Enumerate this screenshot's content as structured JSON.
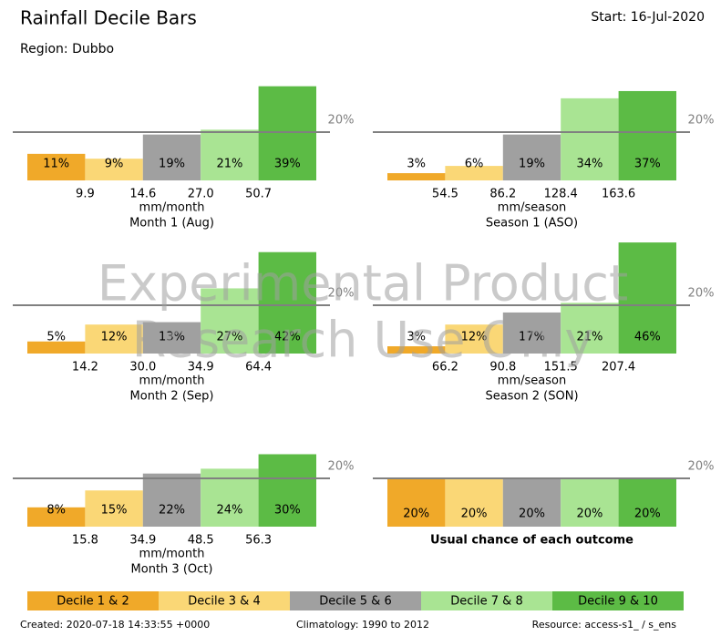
{
  "header": {
    "title": "Rainfall Decile Bars",
    "region": "Region: Dubbo",
    "start": "Start: 16-Jul-2020"
  },
  "watermark": [
    "Experimental Product",
    "Research Use Only"
  ],
  "chart_data": [
    {
      "type": "bar",
      "values": [
        11,
        9,
        19,
        21,
        39
      ],
      "value_labels": [
        "11%",
        "9%",
        "19%",
        "21%",
        "39%"
      ],
      "thresholds": [
        "9.9",
        "14.6",
        "27.0",
        "50.7"
      ],
      "unit": "mm/month",
      "title": "Month 1 (Aug)",
      "ylim": [
        0,
        50
      ],
      "ref_line": 20,
      "ref_label": "20%",
      "colors": [
        "#f0a929",
        "#fad776",
        "#a0a0a0",
        "#a9e493",
        "#5cbb45"
      ]
    },
    {
      "type": "bar",
      "values": [
        3,
        6,
        19,
        34,
        37
      ],
      "value_labels": [
        "3%",
        "6%",
        "19%",
        "34%",
        "37%"
      ],
      "thresholds": [
        "54.5",
        "86.2",
        "128.4",
        "163.6"
      ],
      "unit": "mm/season",
      "title": "Season 1 (ASO)",
      "ylim": [
        0,
        50
      ],
      "ref_line": 20,
      "ref_label": "20%",
      "colors": [
        "#f0a929",
        "#fad776",
        "#a0a0a0",
        "#a9e493",
        "#5cbb45"
      ]
    },
    {
      "type": "bar",
      "values": [
        5,
        12,
        13,
        27,
        42
      ],
      "value_labels": [
        "5%",
        "12%",
        "13%",
        "27%",
        "42%"
      ],
      "thresholds": [
        "14.2",
        "30.0",
        "34.9",
        "64.4"
      ],
      "unit": "mm/month",
      "title": "Month 2 (Sep)",
      "ylim": [
        0,
        50
      ],
      "ref_line": 20,
      "ref_label": "20%",
      "colors": [
        "#f0a929",
        "#fad776",
        "#a0a0a0",
        "#a9e493",
        "#5cbb45"
      ]
    },
    {
      "type": "bar",
      "values": [
        3,
        12,
        17,
        21,
        46
      ],
      "value_labels": [
        "3%",
        "12%",
        "17%",
        "21%",
        "46%"
      ],
      "thresholds": [
        "66.2",
        "90.8",
        "151.5",
        "207.4"
      ],
      "unit": "mm/season",
      "title": "Season 2 (SON)",
      "ylim": [
        0,
        50
      ],
      "ref_line": 20,
      "ref_label": "20%",
      "colors": [
        "#f0a929",
        "#fad776",
        "#a0a0a0",
        "#a9e493",
        "#5cbb45"
      ]
    },
    {
      "type": "bar",
      "values": [
        8,
        15,
        22,
        24,
        30
      ],
      "value_labels": [
        "8%",
        "15%",
        "22%",
        "24%",
        "30%"
      ],
      "thresholds": [
        "15.8",
        "34.9",
        "48.5",
        "56.3"
      ],
      "unit": "mm/month",
      "title": "Month 3 (Oct)",
      "ylim": [
        0,
        50
      ],
      "ref_line": 20,
      "ref_label": "20%",
      "colors": [
        "#f0a929",
        "#fad776",
        "#a0a0a0",
        "#a9e493",
        "#5cbb45"
      ]
    },
    {
      "type": "bar",
      "values": [
        20,
        20,
        20,
        20,
        20
      ],
      "value_labels": [
        "20%",
        "20%",
        "20%",
        "20%",
        "20%"
      ],
      "title": "Usual chance of each outcome",
      "title_style": "bold",
      "ylim": [
        0,
        50
      ],
      "ref_line": 20,
      "ref_label": "20%",
      "colors": [
        "#f0a929",
        "#fad776",
        "#a0a0a0",
        "#a9e493",
        "#5cbb45"
      ]
    }
  ],
  "legend": {
    "labels": [
      "Decile 1 & 2",
      "Decile 3 & 4",
      "Decile 5 & 6",
      "Decile 7 & 8",
      "Decile 9 & 10"
    ],
    "colors": [
      "#f0a929",
      "#fad776",
      "#a0a0a0",
      "#a9e493",
      "#5cbb45"
    ]
  },
  "footer": {
    "created": "Created: 2020-07-18 14:33:55 +0000",
    "climatology": "Climatology: 1990 to 2012",
    "resource": "Resource: access-s1_ / s_ens"
  }
}
